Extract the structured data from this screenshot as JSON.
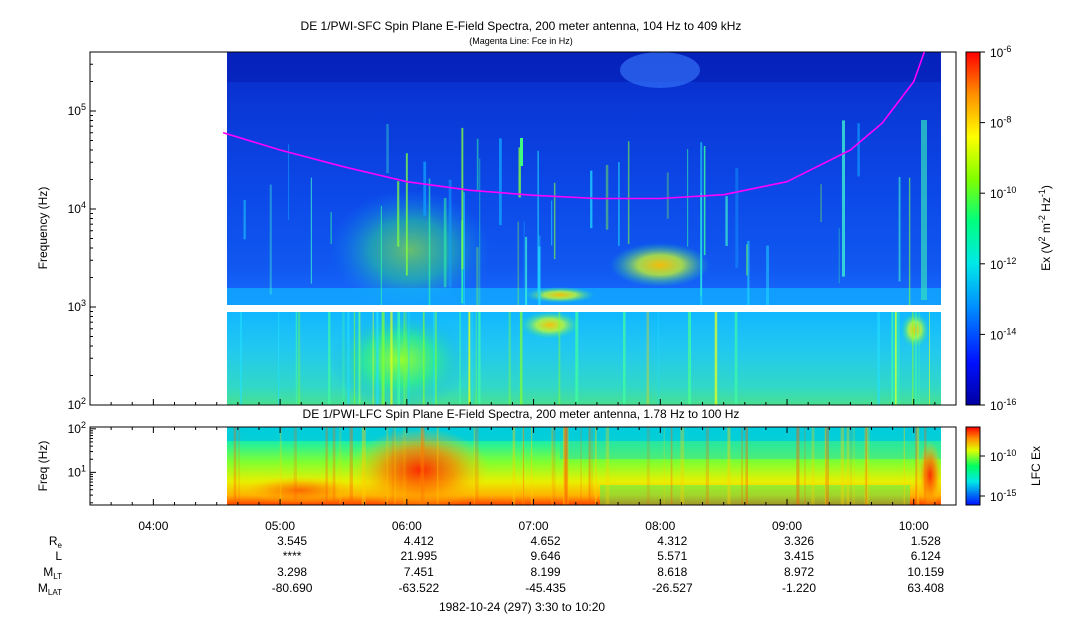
{
  "chart_data": [
    {
      "type": "heatmap",
      "title": "DE 1/PWI-SFC  Spin Plane E-Field Spectra, 200 meter antenna, 104 Hz to 409 kHz",
      "subtitle": "(Magenta Line: Fce in Hz)",
      "ylabel": "Frequency (Hz)",
      "yscale": "log",
      "ylim": [
        100,
        400000
      ],
      "yticks": [
        {
          "value": 100,
          "base": "10",
          "exp": "2"
        },
        {
          "value": 1000,
          "base": "10",
          "exp": "3"
        },
        {
          "value": 10000,
          "base": "10",
          "exp": "4"
        },
        {
          "value": 100000,
          "base": "10",
          "exp": "5"
        }
      ],
      "colorbar": {
        "label_parts": [
          "Ex (V",
          "2",
          " m",
          "-2",
          " Hz",
          "-1",
          ")"
        ],
        "scale": "log",
        "range": [
          1e-16,
          1e-06
        ],
        "ticks": [
          {
            "value": 1e-06,
            "base": "10",
            "exp": "-6"
          },
          {
            "value": 1e-08,
            "base": "10",
            "exp": "-8"
          },
          {
            "value": 1e-10,
            "base": "10",
            "exp": "-10"
          },
          {
            "value": 1e-12,
            "base": "10",
            "exp": "-12"
          },
          {
            "value": 1e-14,
            "base": "10",
            "exp": "-14"
          },
          {
            "value": 1e-16,
            "base": "10",
            "exp": "-16"
          }
        ]
      },
      "data_start": "04:33",
      "data_end": "10:15",
      "gap_freq_hz": [
        900,
        1050
      ],
      "series": [
        {
          "name": "Fce",
          "color": "#ff00ff",
          "x": [
            "04:33",
            "05:00",
            "05:30",
            "06:00",
            "06:30",
            "07:00",
            "07:30",
            "08:00",
            "08:30",
            "09:00",
            "09:30",
            "09:45",
            "10:00",
            "10:05"
          ],
          "y": [
            60000,
            40000,
            27000,
            19000,
            15500,
            13800,
            12800,
            12800,
            14000,
            19000,
            40000,
            75000,
            200000,
            400000
          ]
        }
      ]
    },
    {
      "type": "heatmap",
      "title": "DE 1/PWI-LFC  Spin Plane E-Field Spectra, 200 meter antenna, 1.78 Hz to 100 Hz",
      "ylabel": "Freq (Hz)",
      "yscale": "log",
      "ylim": [
        1.78,
        110
      ],
      "yticks": [
        {
          "value": 10,
          "base": "10",
          "exp": "1"
        },
        {
          "value": 100,
          "base": "10",
          "exp": "2"
        }
      ],
      "colorbar": {
        "label": "LFC Ex",
        "scale": "log",
        "ticks": [
          {
            "value": 1e-10,
            "base": "10",
            "exp": "-10"
          },
          {
            "value": 1e-15,
            "base": "10",
            "exp": "-15"
          }
        ]
      },
      "data_start": "04:33",
      "data_end": "10:15"
    }
  ],
  "time_axis": {
    "range": [
      "03:30",
      "10:20"
    ],
    "labels": [
      "04:00",
      "05:00",
      "06:00",
      "07:00",
      "08:00",
      "09:00",
      "10:00"
    ]
  },
  "ephemeris": {
    "rows": [
      {
        "label": "R",
        "sub": "e",
        "values": [
          "3.545",
          "4.412",
          "4.652",
          "4.312",
          "3.326",
          "1.528"
        ]
      },
      {
        "label": "L",
        "sub": "",
        "values": [
          "****",
          "21.995",
          "9.646",
          "5.571",
          "3.415",
          "6.124"
        ]
      },
      {
        "label": "M",
        "sub": "LT",
        "values": [
          "3.298",
          "7.451",
          "8.199",
          "8.618",
          "8.972",
          "10.159"
        ]
      },
      {
        "label": "M",
        "sub": "LAT",
        "values": [
          "-80.690",
          "-63.522",
          "-45.435",
          "-26.527",
          "-1.220",
          "63.408"
        ]
      }
    ],
    "times": [
      "05:00",
      "06:00",
      "07:00",
      "08:00",
      "09:00",
      "10:00"
    ]
  },
  "footer": "1982-10-24 (297) 3:30 to 10:20"
}
